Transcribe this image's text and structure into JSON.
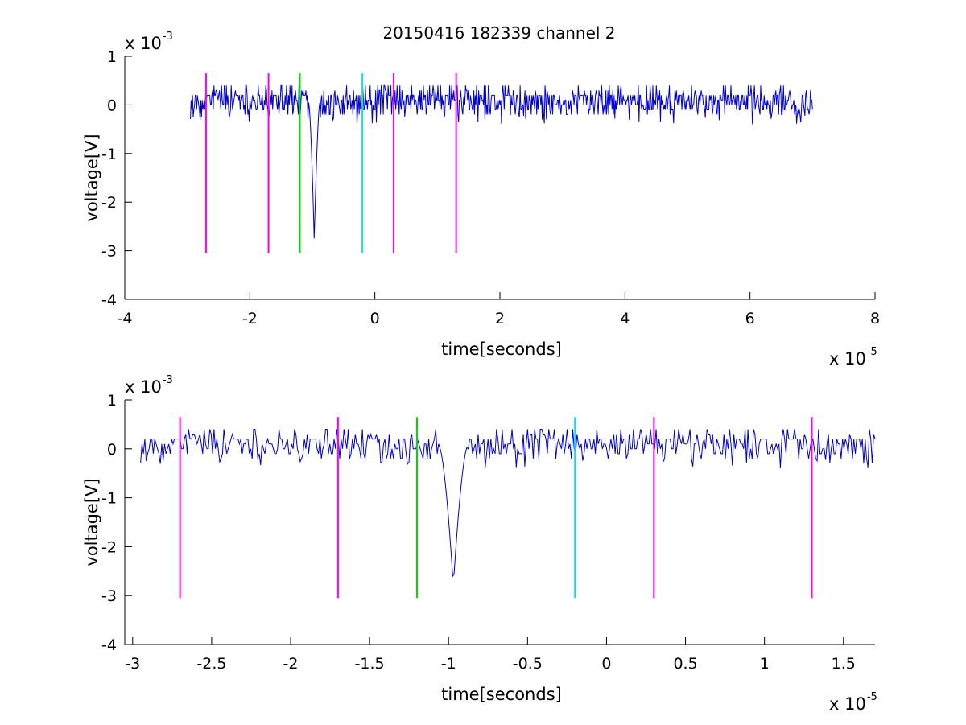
{
  "figure": {
    "title": "20150416 182339 channel 2"
  },
  "chart_data": [
    {
      "type": "line",
      "title": "20150416 182339 channel 2",
      "xlabel": "time[seconds]",
      "ylabel": "voltage[V]",
      "x_multiplier_label": {
        "base": "x 10",
        "exp": "-5"
      },
      "y_multiplier_label": {
        "base": "x 10",
        "exp": "-3"
      },
      "xlim": [
        -4,
        8
      ],
      "ylim": [
        -4,
        1
      ],
      "x_ticks": [
        -4,
        -2,
        0,
        2,
        4,
        6,
        8
      ],
      "x_tick_labels": [
        "-4",
        "-2",
        "0",
        "2",
        "4",
        "6",
        "8"
      ],
      "y_ticks": [
        -4,
        -3,
        -2,
        -1,
        0,
        1
      ],
      "y_tick_labels": [
        "-4",
        "-3",
        "-2",
        "-1",
        "0",
        "1"
      ],
      "grid": false,
      "signal": {
        "color": "#0000cc",
        "x_range": [
          -2.95,
          7.0
        ],
        "baseline": 0.05,
        "noise_amplitude": 0.2,
        "spike": {
          "x": -0.97,
          "y": -2.8
        }
      },
      "markers": [
        {
          "x": -2.7,
          "color": "#ff00ff",
          "ymin": -3.05,
          "ymax": 0.65
        },
        {
          "x": -1.7,
          "color": "#ff00ff",
          "ymin": -3.05,
          "ymax": 0.65
        },
        {
          "x": -1.2,
          "color": "#00dd00",
          "ymin": -3.05,
          "ymax": 0.65
        },
        {
          "x": -0.2,
          "color": "#00e5e5",
          "ymin": -3.05,
          "ymax": 0.65
        },
        {
          "x": 0.3,
          "color": "#ff00ff",
          "ymin": -3.05,
          "ymax": 0.65
        },
        {
          "x": 1.3,
          "color": "#ff00ff",
          "ymin": -3.05,
          "ymax": 0.65
        }
      ]
    },
    {
      "type": "line",
      "title": "",
      "xlabel": "time[seconds]",
      "ylabel": "voltage[V]",
      "x_multiplier_label": {
        "base": "x 10",
        "exp": "-5"
      },
      "y_multiplier_label": {
        "base": "x 10",
        "exp": "-3"
      },
      "xlim": [
        -3.05,
        1.7
      ],
      "ylim": [
        -4,
        1
      ],
      "x_ticks": [
        -3,
        -2.5,
        -2,
        -1.5,
        -1,
        -0.5,
        0,
        0.5,
        1,
        1.5
      ],
      "x_tick_labels": [
        "-3",
        "-2.5",
        "-2",
        "-1.5",
        "-1",
        "-0.5",
        "0",
        "0.5",
        "1",
        "1.5"
      ],
      "y_ticks": [
        -4,
        -3,
        -2,
        -1,
        0,
        1
      ],
      "y_tick_labels": [
        "-4",
        "-3",
        "-2",
        "-1",
        "0",
        "1"
      ],
      "grid": false,
      "signal": {
        "color": "#0000cc",
        "x_range": [
          -2.95,
          1.7
        ],
        "baseline": 0.05,
        "noise_amplitude": 0.2,
        "spike": {
          "x": -0.97,
          "y": -2.8
        }
      },
      "markers": [
        {
          "x": -2.7,
          "color": "#ff00ff",
          "ymin": -3.05,
          "ymax": 0.65
        },
        {
          "x": -1.7,
          "color": "#ff00ff",
          "ymin": -3.05,
          "ymax": 0.65
        },
        {
          "x": -1.2,
          "color": "#00dd00",
          "ymin": -3.05,
          "ymax": 0.65
        },
        {
          "x": -0.2,
          "color": "#00e5e5",
          "ymin": -3.05,
          "ymax": 0.65
        },
        {
          "x": 0.3,
          "color": "#ff00ff",
          "ymin": -3.05,
          "ymax": 0.65
        },
        {
          "x": 1.3,
          "color": "#ff00ff",
          "ymin": -3.05,
          "ymax": 0.65
        }
      ]
    }
  ]
}
